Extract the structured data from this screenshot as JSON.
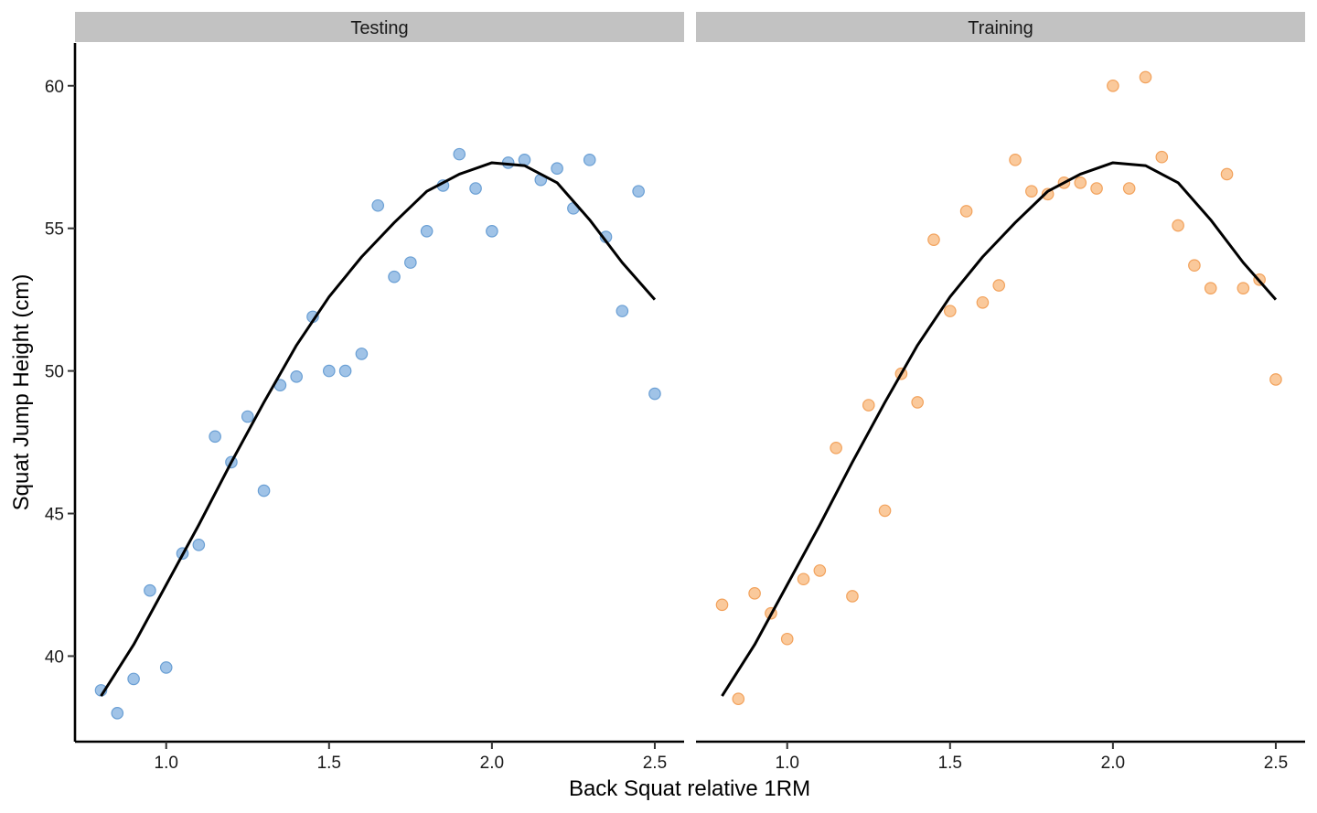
{
  "chart_data": {
    "type": "scatter",
    "xlabel": "Back Squat relative 1RM",
    "ylabel": "Squat Jump Height (cm)",
    "xlim": [
      0.72,
      2.59
    ],
    "ylim": [
      37.0,
      61.5
    ],
    "x_ticks": [
      1.0,
      1.5,
      2.0,
      2.5
    ],
    "x_tick_labels": [
      "1.0",
      "1.5",
      "2.0",
      "2.5"
    ],
    "y_ticks": [
      40,
      45,
      50,
      55,
      60
    ],
    "y_tick_labels": [
      "40",
      "45",
      "50",
      "55",
      "60"
    ],
    "grid": false,
    "legend": "none",
    "fit_curve": {
      "type": "cubic polynomial",
      "color": "#000000",
      "x": [
        0.8,
        0.9,
        1.0,
        1.1,
        1.2,
        1.3,
        1.4,
        1.5,
        1.6,
        1.7,
        1.8,
        1.9,
        2.0,
        2.1,
        2.2,
        2.3,
        2.4,
        2.5
      ],
      "y": [
        38.6,
        40.4,
        42.5,
        44.6,
        46.8,
        48.9,
        50.9,
        52.6,
        54.0,
        55.2,
        56.3,
        56.9,
        57.3,
        57.2,
        56.6,
        55.3,
        53.8,
        52.5
      ]
    },
    "panels": [
      {
        "strip": "Testing",
        "color": "#8fb8e3",
        "stroke": "#6a9fd4",
        "points": [
          {
            "x": 0.8,
            "y": 38.8
          },
          {
            "x": 0.85,
            "y": 38.0
          },
          {
            "x": 0.9,
            "y": 39.2
          },
          {
            "x": 0.95,
            "y": 42.3
          },
          {
            "x": 1.0,
            "y": 39.6
          },
          {
            "x": 1.05,
            "y": 43.6
          },
          {
            "x": 1.1,
            "y": 43.9
          },
          {
            "x": 1.15,
            "y": 47.7
          },
          {
            "x": 1.2,
            "y": 46.8
          },
          {
            "x": 1.25,
            "y": 48.4
          },
          {
            "x": 1.3,
            "y": 45.8
          },
          {
            "x": 1.35,
            "y": 49.5
          },
          {
            "x": 1.4,
            "y": 49.8
          },
          {
            "x": 1.45,
            "y": 51.9
          },
          {
            "x": 1.5,
            "y": 50.0
          },
          {
            "x": 1.55,
            "y": 50.0
          },
          {
            "x": 1.6,
            "y": 50.6
          },
          {
            "x": 1.65,
            "y": 55.8
          },
          {
            "x": 1.7,
            "y": 53.3
          },
          {
            "x": 1.75,
            "y": 53.8
          },
          {
            "x": 1.8,
            "y": 54.9
          },
          {
            "x": 1.85,
            "y": 56.5
          },
          {
            "x": 1.9,
            "y": 57.6
          },
          {
            "x": 1.95,
            "y": 56.4
          },
          {
            "x": 2.0,
            "y": 54.9
          },
          {
            "x": 2.05,
            "y": 57.3
          },
          {
            "x": 2.1,
            "y": 57.4
          },
          {
            "x": 2.15,
            "y": 56.7
          },
          {
            "x": 2.2,
            "y": 57.1
          },
          {
            "x": 2.25,
            "y": 55.7
          },
          {
            "x": 2.3,
            "y": 57.4
          },
          {
            "x": 2.35,
            "y": 54.7
          },
          {
            "x": 2.4,
            "y": 52.1
          },
          {
            "x": 2.45,
            "y": 56.3
          },
          {
            "x": 2.5,
            "y": 49.2
          }
        ]
      },
      {
        "strip": "Training",
        "color": "#f9c08a",
        "stroke": "#f2a25c",
        "points": [
          {
            "x": 0.8,
            "y": 41.8
          },
          {
            "x": 0.85,
            "y": 38.5
          },
          {
            "x": 0.9,
            "y": 42.2
          },
          {
            "x": 0.95,
            "y": 41.5
          },
          {
            "x": 1.0,
            "y": 40.6
          },
          {
            "x": 1.05,
            "y": 42.7
          },
          {
            "x": 1.1,
            "y": 43.0
          },
          {
            "x": 1.15,
            "y": 47.3
          },
          {
            "x": 1.2,
            "y": 42.1
          },
          {
            "x": 1.25,
            "y": 48.8
          },
          {
            "x": 1.3,
            "y": 45.1
          },
          {
            "x": 1.35,
            "y": 49.9
          },
          {
            "x": 1.4,
            "y": 48.9
          },
          {
            "x": 1.45,
            "y": 54.6
          },
          {
            "x": 1.5,
            "y": 52.1
          },
          {
            "x": 1.55,
            "y": 55.6
          },
          {
            "x": 1.6,
            "y": 52.4
          },
          {
            "x": 1.65,
            "y": 53.0
          },
          {
            "x": 1.7,
            "y": 57.4
          },
          {
            "x": 1.75,
            "y": 56.3
          },
          {
            "x": 1.8,
            "y": 56.2
          },
          {
            "x": 1.85,
            "y": 56.6
          },
          {
            "x": 1.9,
            "y": 56.6
          },
          {
            "x": 1.95,
            "y": 56.4
          },
          {
            "x": 2.0,
            "y": 60.0
          },
          {
            "x": 2.05,
            "y": 56.4
          },
          {
            "x": 2.1,
            "y": 60.3
          },
          {
            "x": 2.15,
            "y": 57.5
          },
          {
            "x": 2.2,
            "y": 55.1
          },
          {
            "x": 2.25,
            "y": 53.7
          },
          {
            "x": 2.3,
            "y": 52.9
          },
          {
            "x": 2.35,
            "y": 56.9
          },
          {
            "x": 2.4,
            "y": 52.9
          },
          {
            "x": 2.45,
            "y": 53.2
          },
          {
            "x": 2.5,
            "y": 49.7
          }
        ]
      }
    ]
  }
}
